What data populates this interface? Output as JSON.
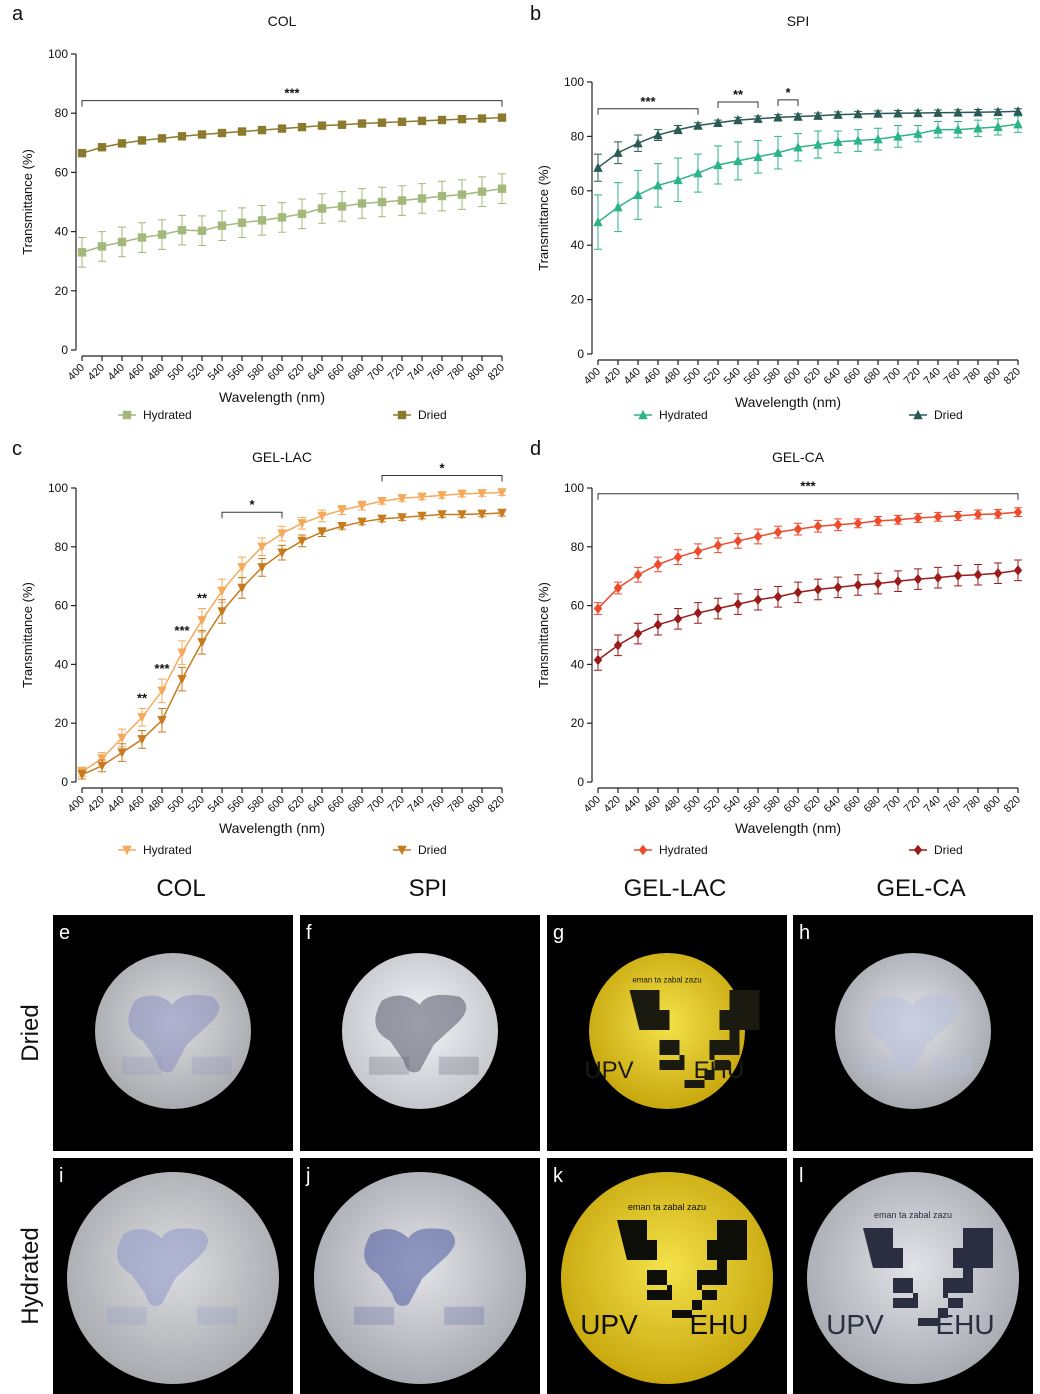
{
  "chart_data": [
    {
      "type": "line",
      "panel": "a",
      "title": "COL",
      "xlabel": "Wavelength (nm)",
      "ylabel": "Transmittance (%)",
      "x": [
        400,
        420,
        440,
        460,
        480,
        500,
        520,
        540,
        560,
        580,
        600,
        620,
        640,
        660,
        680,
        700,
        720,
        740,
        760,
        780,
        800,
        820
      ],
      "xticks": [
        400,
        420,
        440,
        460,
        480,
        500,
        520,
        540,
        560,
        580,
        600,
        620,
        640,
        660,
        680,
        700,
        720,
        740,
        760,
        780,
        800,
        820
      ],
      "xlim": [
        400,
        820
      ],
      "ylim": [
        0,
        100
      ],
      "yticks": [
        0,
        20,
        40,
        60,
        80,
        100
      ],
      "series": [
        {
          "name": "Hydrated",
          "color": "#a3b87a",
          "marker": "square",
          "values": [
            33,
            35,
            36.5,
            38,
            39,
            40.5,
            40.3,
            42,
            43,
            43.8,
            44.8,
            46,
            47.8,
            48.5,
            49.5,
            50,
            50.5,
            51.2,
            52,
            52.5,
            53.5,
            54.5
          ],
          "errors": [
            5,
            5,
            5,
            5,
            5,
            5,
            5,
            5,
            5,
            5,
            5,
            5,
            5,
            5,
            5,
            5,
            5,
            5,
            5,
            5,
            5,
            5
          ]
        },
        {
          "name": "Dried",
          "color": "#8b7a2e",
          "marker": "square",
          "values": [
            66.5,
            68.5,
            69.8,
            70.8,
            71.5,
            72.2,
            72.8,
            73.3,
            73.8,
            74.3,
            74.8,
            75.3,
            75.8,
            76.1,
            76.5,
            76.8,
            77.1,
            77.4,
            77.7,
            78,
            78.2,
            78.5
          ],
          "errors": [
            1,
            1,
            1,
            1,
            1,
            1,
            1,
            1,
            1,
            1,
            1,
            1,
            1,
            1,
            1,
            1,
            1,
            1,
            1,
            1,
            1,
            1
          ]
        }
      ],
      "annotations": [
        {
          "text": "***",
          "x_range": [
            400,
            820
          ]
        }
      ]
    },
    {
      "type": "line",
      "panel": "b",
      "title": "SPI",
      "xlabel": "Wavelength (nm)",
      "ylabel": "Transmittance (%)",
      "x": [
        400,
        420,
        440,
        460,
        480,
        500,
        520,
        540,
        560,
        580,
        600,
        620,
        640,
        660,
        680,
        700,
        720,
        740,
        760,
        780,
        800,
        820
      ],
      "xticks": [
        400,
        420,
        440,
        460,
        480,
        500,
        520,
        540,
        560,
        580,
        600,
        620,
        640,
        660,
        680,
        700,
        720,
        740,
        760,
        780,
        800,
        820
      ],
      "xlim": [
        400,
        820
      ],
      "ylim": [
        0,
        100
      ],
      "yticks": [
        0,
        20,
        40,
        60,
        80,
        100
      ],
      "series": [
        {
          "name": "Hydrated",
          "color": "#2db38a",
          "marker": "triangle-up",
          "values": [
            48.5,
            54,
            58.5,
            62,
            64,
            66.5,
            69.5,
            71,
            72.5,
            74,
            76,
            77,
            78,
            78.5,
            79,
            80,
            81,
            82.5,
            82.5,
            83,
            83.5,
            84.5
          ],
          "errors": [
            10,
            9,
            9,
            8,
            8,
            7,
            7,
            7,
            6,
            6,
            5,
            5,
            4,
            4,
            4,
            4,
            3,
            3,
            3,
            3,
            3,
            3
          ]
        },
        {
          "name": "Dried",
          "color": "#2a5a55",
          "marker": "triangle-up",
          "values": [
            68.5,
            74,
            77.5,
            80.5,
            82.5,
            84,
            85,
            86,
            86.5,
            87,
            87.3,
            87.6,
            88,
            88.2,
            88.4,
            88.5,
            88.6,
            88.7,
            88.8,
            88.9,
            89,
            89.2
          ],
          "errors": [
            5,
            4,
            3,
            2,
            1.5,
            1,
            1,
            1,
            1,
            1,
            1,
            1,
            1,
            1,
            1,
            1,
            1,
            1,
            1,
            1,
            1,
            1
          ]
        }
      ],
      "annotations": [
        {
          "text": "***",
          "x_range": [
            400,
            500
          ]
        },
        {
          "text": "**",
          "x_range": [
            520,
            560
          ]
        },
        {
          "text": "*",
          "x_range": [
            580,
            600
          ]
        }
      ]
    },
    {
      "type": "line",
      "panel": "c",
      "title": "GEL-LAC",
      "xlabel": "Wavelength (nm)",
      "ylabel": "Transmittance (%)",
      "x": [
        400,
        420,
        440,
        460,
        480,
        500,
        520,
        540,
        560,
        580,
        600,
        620,
        640,
        660,
        680,
        700,
        720,
        740,
        760,
        780,
        800,
        820
      ],
      "xticks": [
        400,
        420,
        440,
        460,
        480,
        500,
        520,
        540,
        560,
        580,
        600,
        620,
        640,
        660,
        680,
        700,
        720,
        740,
        760,
        780,
        800,
        820
      ],
      "xlim": [
        400,
        820
      ],
      "ylim": [
        0,
        100
      ],
      "yticks": [
        0,
        20,
        40,
        60,
        80,
        100
      ],
      "series": [
        {
          "name": "Hydrated",
          "color": "#f5a95a",
          "marker": "triangle-down",
          "values": [
            3.5,
            8,
            15,
            22,
            31,
            44,
            55,
            65,
            73,
            80,
            84.5,
            88,
            90.5,
            92.5,
            94,
            95.5,
            96.5,
            97,
            97.5,
            98,
            98.2,
            98.5
          ],
          "errors": [
            1.5,
            2,
            3,
            3,
            4,
            4,
            4,
            4,
            3.5,
            3,
            2.5,
            2,
            2,
            1.5,
            1.5,
            1,
            1,
            1,
            1,
            1,
            1,
            1
          ]
        },
        {
          "name": "Dried",
          "color": "#c77b1e",
          "marker": "triangle-down",
          "values": [
            2.5,
            5.5,
            10,
            14.5,
            21,
            35,
            47.5,
            58,
            66,
            73,
            78,
            82,
            85,
            87,
            88.5,
            89.5,
            90,
            90.5,
            91,
            91,
            91.2,
            91.5
          ],
          "errors": [
            1.5,
            2,
            3,
            3,
            4,
            4,
            4,
            4,
            3.5,
            3,
            2.5,
            2,
            1.5,
            1,
            1,
            1,
            1,
            1,
            1,
            1,
            1,
            1
          ]
        }
      ],
      "annotations": [
        {
          "text": "*",
          "x_range": [
            540,
            600
          ]
        },
        {
          "text": "*",
          "x_range": [
            700,
            820
          ]
        },
        {
          "text": "**",
          "x": 460
        },
        {
          "text": "***",
          "x": 480
        },
        {
          "text": "***",
          "x": 500
        },
        {
          "text": "**",
          "x": 520
        }
      ]
    },
    {
      "type": "line",
      "panel": "d",
      "title": "GEL-CA",
      "xlabel": "Wavelength (nm)",
      "ylabel": "Transmittance (%)",
      "x": [
        400,
        420,
        440,
        460,
        480,
        500,
        520,
        540,
        560,
        580,
        600,
        620,
        640,
        660,
        680,
        700,
        720,
        740,
        760,
        780,
        800,
        820
      ],
      "xticks": [
        400,
        420,
        440,
        460,
        480,
        500,
        520,
        540,
        560,
        580,
        600,
        620,
        640,
        660,
        680,
        700,
        720,
        740,
        760,
        780,
        800,
        820
      ],
      "xlim": [
        400,
        820
      ],
      "ylim": [
        0,
        100
      ],
      "yticks": [
        0,
        20,
        40,
        60,
        80,
        100
      ],
      "series": [
        {
          "name": "Hydrated",
          "color": "#ee4b2b",
          "marker": "diamond",
          "values": [
            59,
            66,
            70.5,
            74,
            76.5,
            78.5,
            80.5,
            82,
            83.5,
            85,
            86,
            87,
            87.5,
            88,
            88.8,
            89.2,
            89.8,
            90.2,
            90.5,
            91,
            91.2,
            91.8
          ],
          "errors": [
            2,
            2,
            2.5,
            2.5,
            2.5,
            2.5,
            2.5,
            2.5,
            2.5,
            2,
            2,
            2,
            2,
            1.5,
            1.5,
            1.5,
            1.5,
            1.5,
            1.5,
            1.5,
            1.5,
            1.5
          ]
        },
        {
          "name": "Dried",
          "color": "#9b1b1b",
          "marker": "diamond",
          "values": [
            41.5,
            46.5,
            50.5,
            53.5,
            55.5,
            57.5,
            59,
            60.5,
            62,
            63,
            64.5,
            65.5,
            66.2,
            67,
            67.5,
            68.3,
            69,
            69.5,
            70.2,
            70.5,
            71,
            72
          ],
          "errors": [
            3.5,
            3.5,
            3.5,
            3.5,
            3.5,
            3.5,
            3.5,
            3.5,
            3.5,
            3.5,
            3.5,
            3.5,
            3.5,
            3.5,
            3.5,
            3.5,
            3.5,
            3.5,
            3.5,
            3.5,
            3.5,
            3.5
          ]
        }
      ],
      "annotations": [
        {
          "text": "***",
          "x_range": [
            400,
            820
          ]
        }
      ]
    }
  ],
  "photos": {
    "columns": [
      "COL",
      "SPI",
      "GEL-LAC",
      "GEL-CA"
    ],
    "rows": [
      "Dried",
      "Hydrated"
    ],
    "panels": [
      {
        "letter": "e"
      },
      {
        "letter": "f"
      },
      {
        "letter": "g",
        "texts": [
          "eman ta zabal zazu",
          "UPV",
          "EHU"
        ]
      },
      {
        "letter": "h"
      },
      {
        "letter": "i"
      },
      {
        "letter": "j"
      },
      {
        "letter": "k",
        "texts": [
          "eman ta zabal zazu",
          "UPV",
          "EHU"
        ]
      },
      {
        "letter": "l",
        "texts": [
          "eman ta zabal zazu",
          "UPV",
          "EHU"
        ]
      }
    ]
  }
}
